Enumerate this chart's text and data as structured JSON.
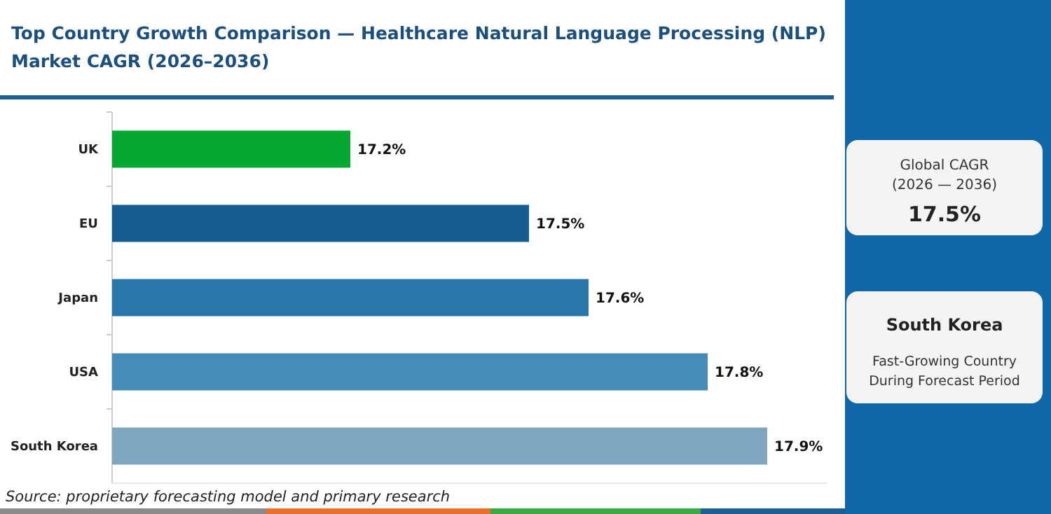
{
  "chart_data": {
    "type": "bar",
    "orientation": "horizontal",
    "title": "Top Country Growth Comparison — Healthcare Natural Language Processing (NLP) Market CAGR (2026–2036)",
    "categories": [
      "UK",
      "EU",
      "Japan",
      "USA",
      "South Korea"
    ],
    "values": [
      17.2,
      17.5,
      17.6,
      17.8,
      17.9
    ],
    "colors": [
      "#06a832",
      "#175d8f",
      "#2877aa",
      "#468cb8",
      "#7ea7c0"
    ],
    "value_labels": [
      "17.2%",
      "17.5%",
      "17.6%",
      "17.8%",
      "17.9%"
    ],
    "xlim": [
      16.8,
      18.0
    ],
    "tick_labels": "y",
    "annotations": [
      "Source: proprietary forecasting model and primary research",
      "Global CAGR",
      "(2026 — 2036)",
      "17.5%",
      "South Korea",
      "Fast-Growing Country",
      "During Forecast Period"
    ]
  }
}
